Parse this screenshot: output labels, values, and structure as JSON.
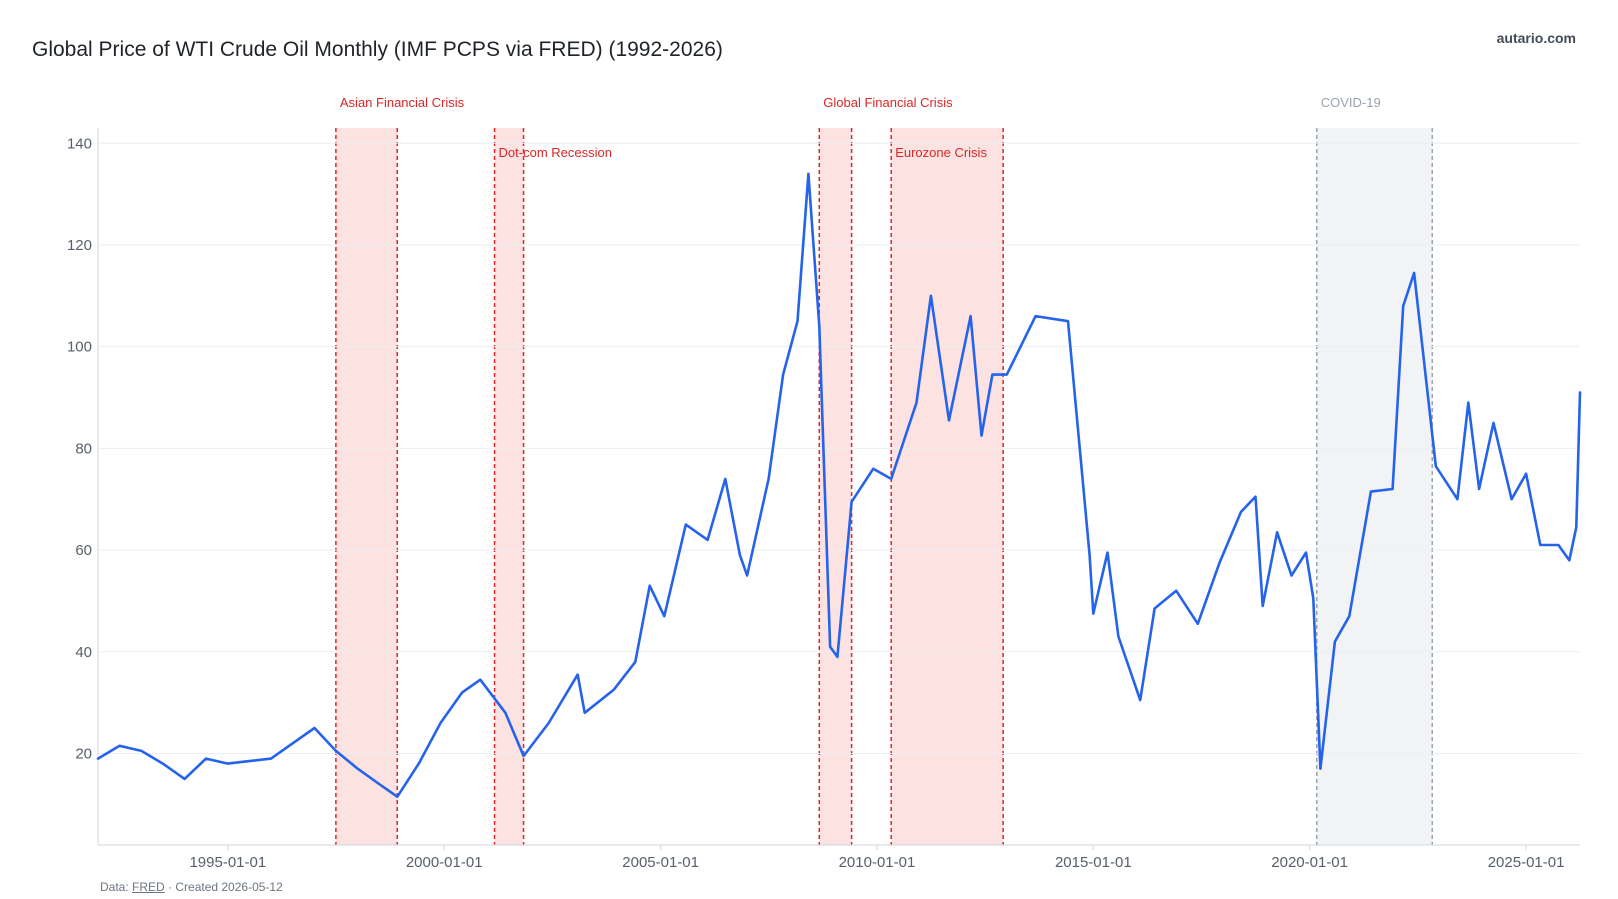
{
  "header": {
    "title": "Global Price of WTI Crude Oil Monthly (IMF PCPS via FRED) (1992-2026)",
    "brand": "autario.com"
  },
  "footer": {
    "prefix": "Data: ",
    "source_link": "FRED",
    "suffix": " · Created 2026-05-12"
  },
  "chart_data": {
    "type": "line",
    "title": "Global Price of WTI Crude Oil Monthly (IMF PCPS via FRED) (1992-2026)",
    "xlabel": "",
    "ylabel": "",
    "xlim": [
      "1992-01-01",
      "2026-04-01"
    ],
    "ylim": [
      2,
      143
    ],
    "grid": true,
    "yticks": [
      20,
      40,
      60,
      80,
      100,
      120,
      140
    ],
    "xticks": [
      "1995-01-01",
      "2000-01-01",
      "2005-01-01",
      "2010-01-01",
      "2015-01-01",
      "2020-01-01",
      "2025-01-01"
    ],
    "series": [
      {
        "color": "#2563eb",
        "points": [
          [
            "1992-01-01",
            19.0
          ],
          [
            "1992-07-01",
            21.5
          ],
          [
            "1993-01-01",
            20.5
          ],
          [
            "1993-07-01",
            18.0
          ],
          [
            "1994-01-01",
            15.0
          ],
          [
            "1994-07-01",
            19.0
          ],
          [
            "1995-01-01",
            18.0
          ],
          [
            "1995-07-01",
            18.5
          ],
          [
            "1996-01-01",
            19.0
          ],
          [
            "1996-07-01",
            22.0
          ],
          [
            "1997-01-01",
            25.0
          ],
          [
            "1997-07-01",
            20.5
          ],
          [
            "1998-01-01",
            17.0
          ],
          [
            "1998-07-01",
            14.0
          ],
          [
            "1998-12-01",
            11.5
          ],
          [
            "1999-06-01",
            18.0
          ],
          [
            "1999-12-01",
            26.0
          ],
          [
            "2000-06-01",
            32.0
          ],
          [
            "2000-11-01",
            34.5
          ],
          [
            "2001-06-01",
            28.0
          ],
          [
            "2001-11-01",
            19.5
          ],
          [
            "2002-06-01",
            26.0
          ],
          [
            "2003-02-01",
            35.5
          ],
          [
            "2003-04-01",
            28.0
          ],
          [
            "2003-12-01",
            32.5
          ],
          [
            "2004-06-01",
            38.0
          ],
          [
            "2004-10-01",
            53.0
          ],
          [
            "2005-02-01",
            47.0
          ],
          [
            "2005-08-01",
            65.0
          ],
          [
            "2006-02-01",
            62.0
          ],
          [
            "2006-07-01",
            74.0
          ],
          [
            "2006-11-01",
            59.0
          ],
          [
            "2007-01-01",
            55.0
          ],
          [
            "2007-07-01",
            74.0
          ],
          [
            "2007-11-01",
            94.5
          ],
          [
            "2008-03-01",
            105.0
          ],
          [
            "2008-06-01",
            134.0
          ],
          [
            "2008-09-01",
            104.0
          ],
          [
            "2008-12-01",
            41.0
          ],
          [
            "2009-02-01",
            39.0
          ],
          [
            "2009-06-01",
            69.5
          ],
          [
            "2009-12-01",
            76.0
          ],
          [
            "2010-05-01",
            74.0
          ],
          [
            "2010-12-01",
            89.0
          ],
          [
            "2011-04-01",
            110.0
          ],
          [
            "2011-09-01",
            85.5
          ],
          [
            "2012-03-01",
            106.0
          ],
          [
            "2012-06-01",
            82.5
          ],
          [
            "2012-09-01",
            94.5
          ],
          [
            "2013-01-01",
            94.5
          ],
          [
            "2013-09-01",
            106.0
          ],
          [
            "2014-06-01",
            105.0
          ],
          [
            "2014-12-01",
            59.0
          ],
          [
            "2015-01-01",
            47.5
          ],
          [
            "2015-05-01",
            59.5
          ],
          [
            "2015-08-01",
            43.0
          ],
          [
            "2016-02-01",
            30.5
          ],
          [
            "2016-06-01",
            48.5
          ],
          [
            "2016-12-01",
            52.0
          ],
          [
            "2017-06-01",
            45.5
          ],
          [
            "2017-12-01",
            57.5
          ],
          [
            "2018-06-01",
            67.5
          ],
          [
            "2018-10-01",
            70.5
          ],
          [
            "2018-12-01",
            49.0
          ],
          [
            "2019-04-01",
            63.5
          ],
          [
            "2019-08-01",
            55.0
          ],
          [
            "2019-12-01",
            59.5
          ],
          [
            "2020-02-01",
            50.5
          ],
          [
            "2020-04-01",
            17.0
          ],
          [
            "2020-08-01",
            42.0
          ],
          [
            "2020-12-01",
            47.0
          ],
          [
            "2021-06-01",
            71.5
          ],
          [
            "2021-12-01",
            72.0
          ],
          [
            "2022-03-01",
            108.0
          ],
          [
            "2022-06-01",
            114.5
          ],
          [
            "2022-12-01",
            76.5
          ],
          [
            "2023-06-01",
            70.0
          ],
          [
            "2023-09-01",
            89.0
          ],
          [
            "2023-12-01",
            72.0
          ],
          [
            "2024-04-01",
            85.0
          ],
          [
            "2024-09-01",
            70.0
          ],
          [
            "2025-01-01",
            75.0
          ],
          [
            "2025-05-01",
            61.0
          ],
          [
            "2025-10-01",
            61.0
          ],
          [
            "2026-01-01",
            58.0
          ],
          [
            "2026-03-01",
            64.5
          ],
          [
            "2026-04-01",
            91.0
          ]
        ]
      }
    ],
    "annotations": [
      {
        "label": "Asian Financial Crisis",
        "start": "1997-07-01",
        "end": "1998-12-01",
        "color": "#dc2626",
        "fill": "#fde2e2"
      },
      {
        "label": "Dot-com Recession",
        "start": "2001-03-01",
        "end": "2001-11-01",
        "color": "#dc2626",
        "fill": "#fde2e2"
      },
      {
        "label": "Global Financial Crisis",
        "start": "2008-09-01",
        "end": "2009-06-01",
        "color": "#dc2626",
        "fill": "#fde2e2"
      },
      {
        "label": "Eurozone Crisis",
        "start": "2010-05-01",
        "end": "2012-12-01",
        "color": "#dc2626",
        "fill": "#fde2e2"
      },
      {
        "label": "COVID-19",
        "start": "2020-03-01",
        "end": "2022-11-01",
        "color": "#9ca3af",
        "fill": "#f1f3f5"
      }
    ]
  }
}
